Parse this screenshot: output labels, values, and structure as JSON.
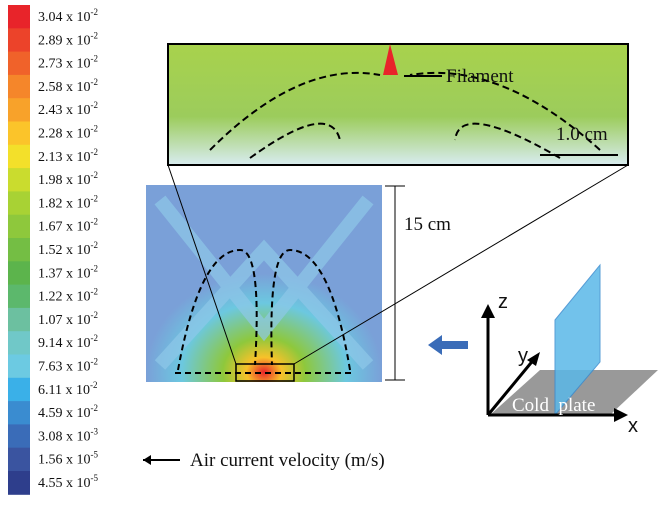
{
  "legend": {
    "items": [
      {
        "mantissa": "3.04 x 10",
        "exponent": "-2",
        "color": "#e8242a"
      },
      {
        "mantissa": "2.89 x 10",
        "exponent": "-2",
        "color": "#ec432a"
      },
      {
        "mantissa": "2.73 x 10",
        "exponent": "-2",
        "color": "#f0622a"
      },
      {
        "mantissa": "2.58 x 10",
        "exponent": "-2",
        "color": "#f5862a"
      },
      {
        "mantissa": "2.43 x 10",
        "exponent": "-2",
        "color": "#f8a22a"
      },
      {
        "mantissa": "2.28 x 10",
        "exponent": "-2",
        "color": "#fbc42a"
      },
      {
        "mantissa": "2.13 x 10",
        "exponent": "-2",
        "color": "#f3e02a"
      },
      {
        "mantissa": "1.98 x 10",
        "exponent": "-2",
        "color": "#cadc2e"
      },
      {
        "mantissa": "1.82 x 10",
        "exponent": "-2",
        "color": "#a8d234"
      },
      {
        "mantissa": "1.67 x 10",
        "exponent": "-2",
        "color": "#8ec83c"
      },
      {
        "mantissa": "1.52 x 10",
        "exponent": "-2",
        "color": "#74be44"
      },
      {
        "mantissa": "1.37 x 10",
        "exponent": "-2",
        "color": "#5cb44c"
      },
      {
        "mantissa": "1.22 x 10",
        "exponent": "-2",
        "color": "#5cb86c"
      },
      {
        "mantissa": "1.07 x 10",
        "exponent": "-2",
        "color": "#6cc0a0"
      },
      {
        "mantissa": "9.14 x 10",
        "exponent": "-2",
        "color": "#70c8c8"
      },
      {
        "mantissa": "7.63 x 10",
        "exponent": "-2",
        "color": "#6ccae2"
      },
      {
        "mantissa": "6.11 x 10",
        "exponent": "-2",
        "color": "#3ab0e8"
      },
      {
        "mantissa": "4.59 x 10",
        "exponent": "-2",
        "color": "#3a8cd0"
      },
      {
        "mantissa": "3.08 x 10",
        "exponent": "-3",
        "color": "#3a6cb8"
      },
      {
        "mantissa": "1.56 x 10",
        "exponent": "-5",
        "color": "#3a54a0"
      },
      {
        "mantissa": "4.55 x 10",
        "exponent": "-5",
        "color": "#2e3e8c"
      }
    ],
    "caption": "Air current velocity (m/s)"
  },
  "inset": {
    "filament": "Filament",
    "scale": "1.0 cm"
  },
  "dimension": "15 cm",
  "axes": {
    "z": "z",
    "y": "y",
    "x": "x",
    "plate": "Cold  plate"
  }
}
